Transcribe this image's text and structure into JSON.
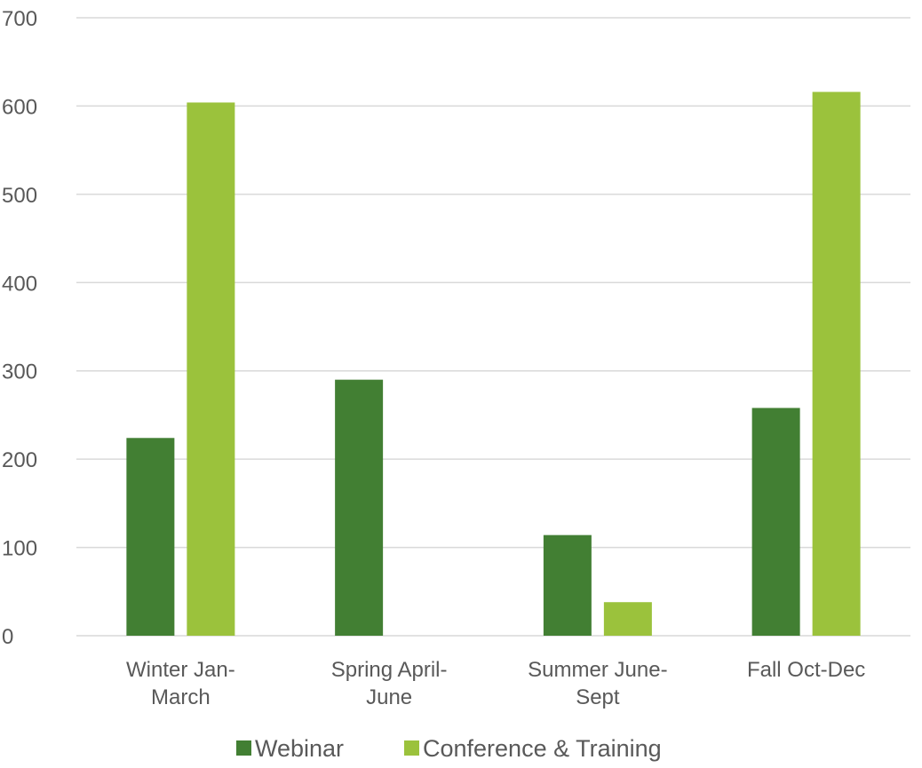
{
  "chart_data": {
    "type": "bar",
    "title": "",
    "xlabel": "",
    "ylabel": "",
    "categories": [
      [
        "Winter Jan-",
        "March"
      ],
      [
        "Spring April-",
        "June"
      ],
      [
        "Summer June-",
        "Sept"
      ],
      [
        "Fall Oct-Dec"
      ]
    ],
    "series": [
      {
        "name": "Webinar",
        "color": "#427f33",
        "values": [
          224,
          290,
          114,
          258
        ]
      },
      {
        "name": "Conference & Training",
        "color": "#9bc23c",
        "values": [
          604,
          0,
          38,
          616
        ]
      }
    ],
    "ylim": [
      0,
      700
    ],
    "yticks": [
      "0",
      "100",
      "200",
      "300",
      "400",
      "500",
      "600",
      "700"
    ],
    "grid": true,
    "legend_position": "bottom-center"
  }
}
